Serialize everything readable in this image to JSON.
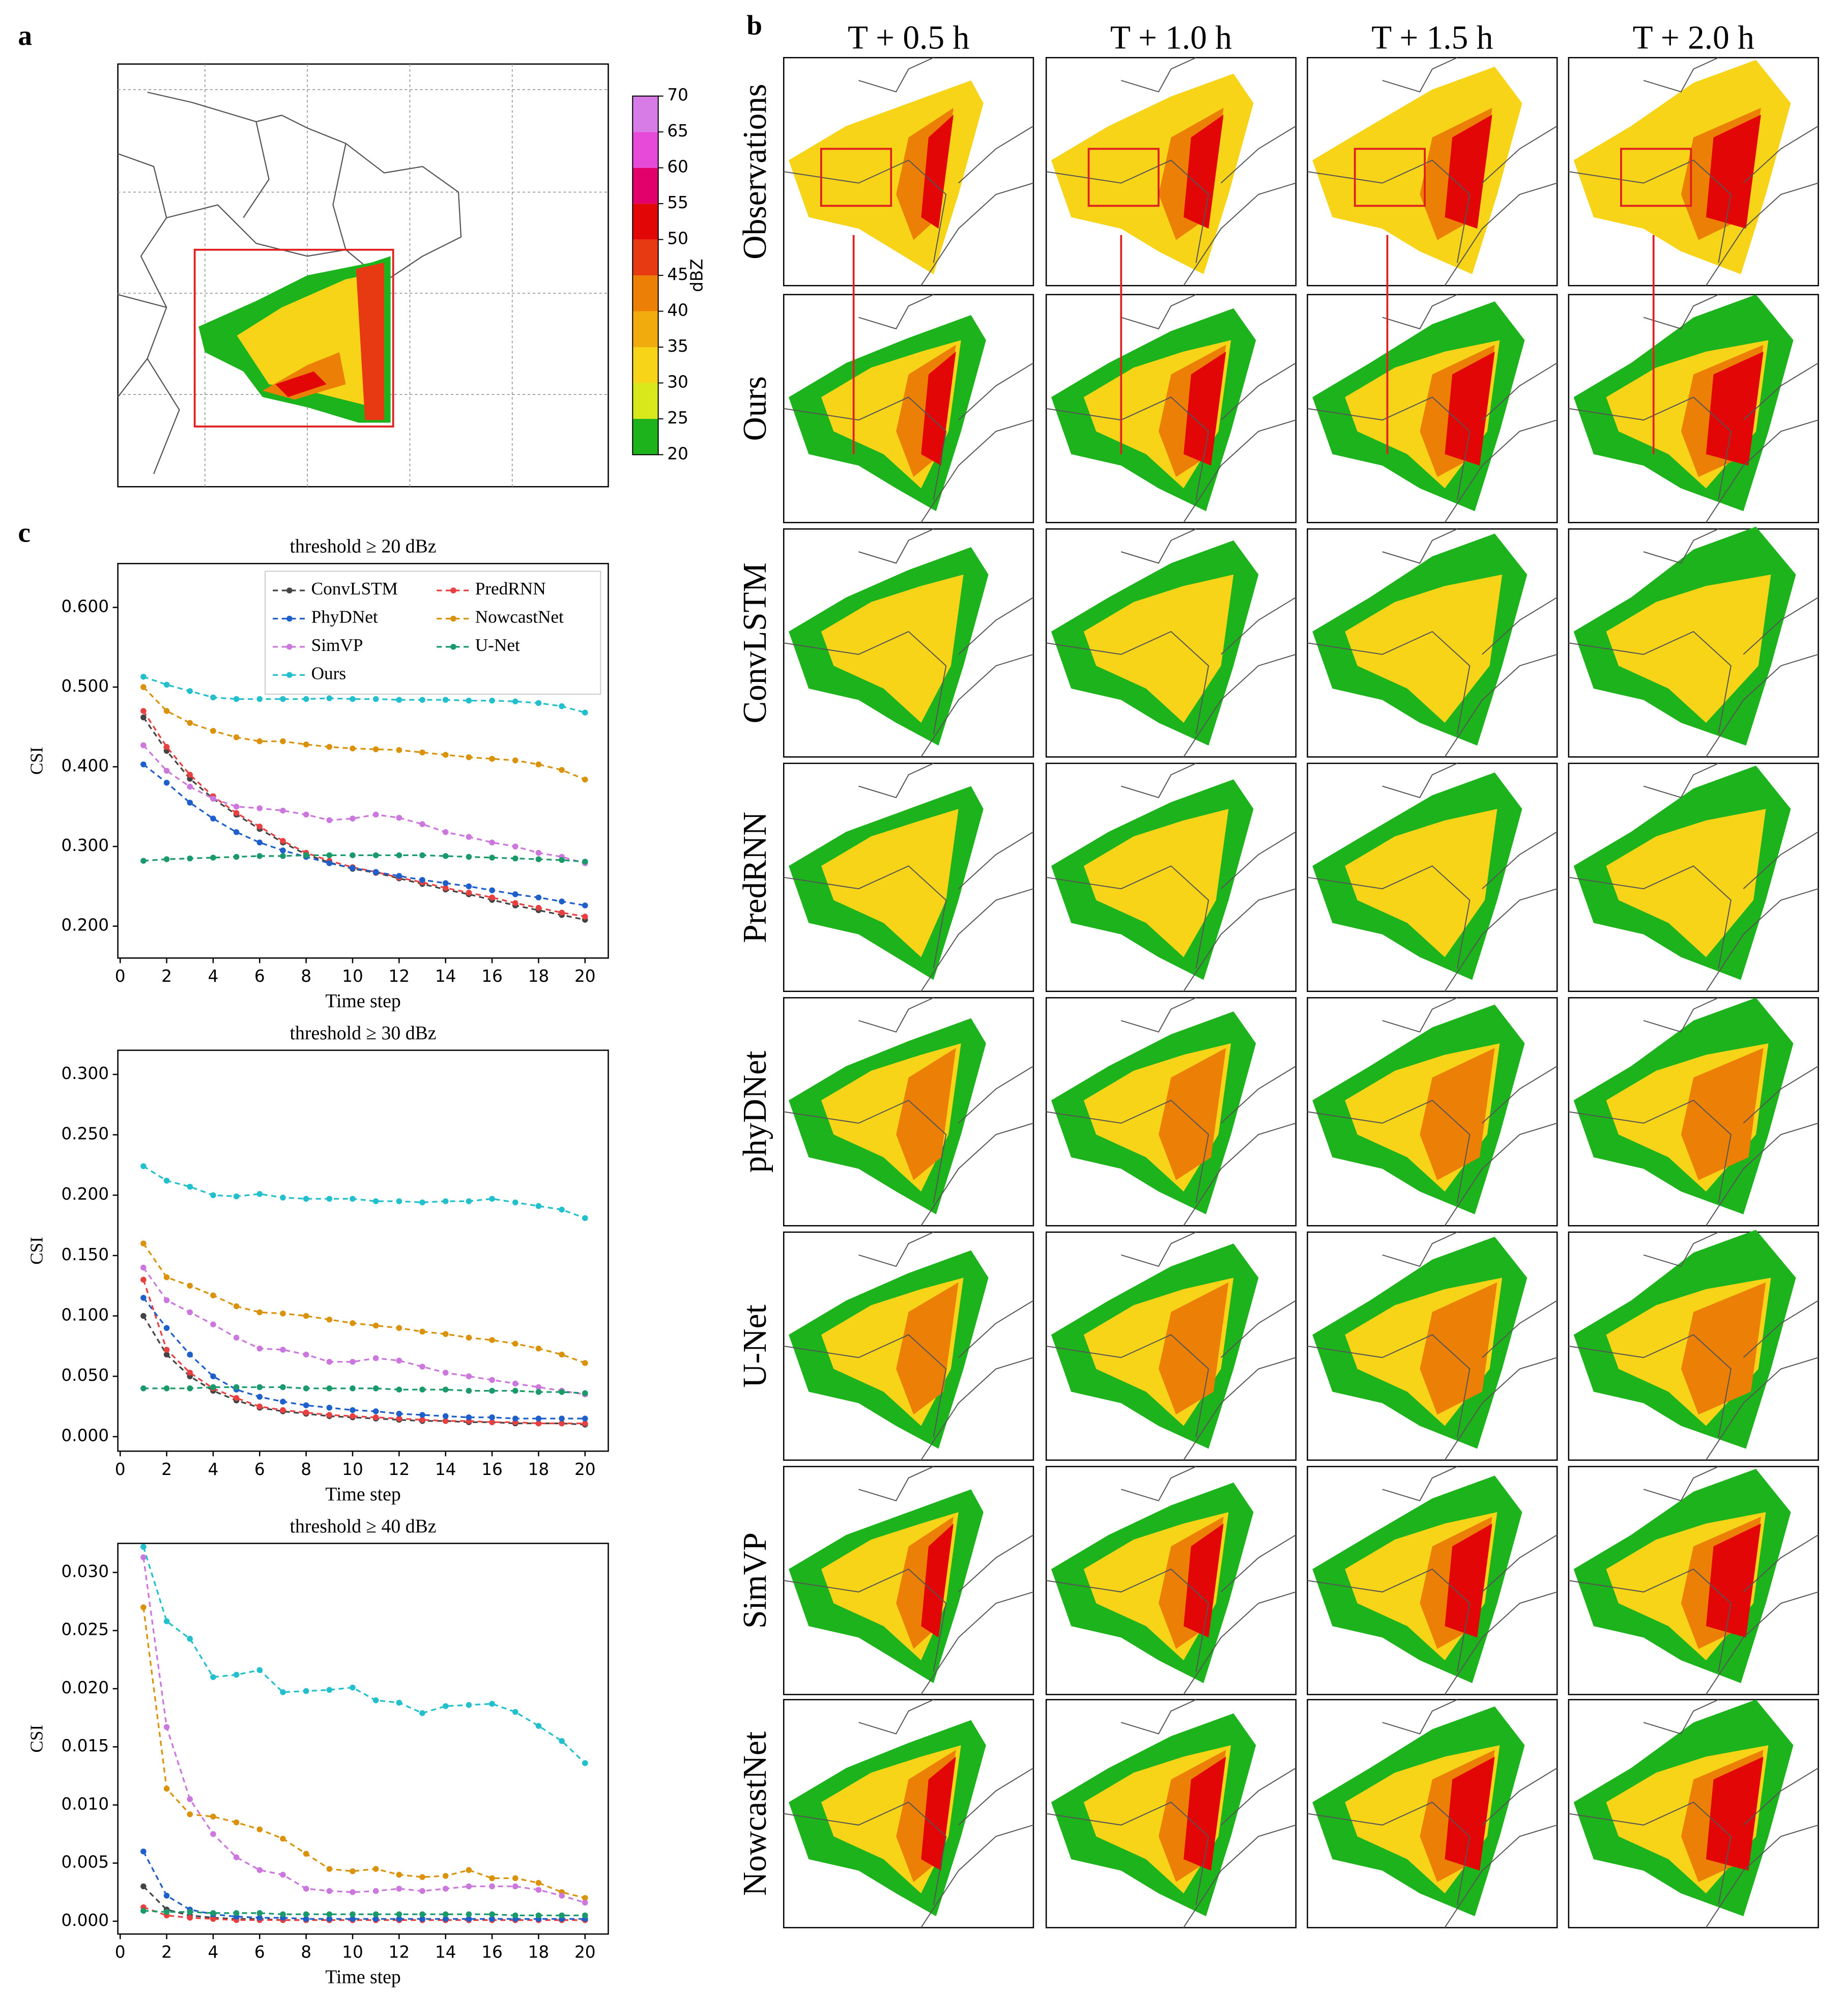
{
  "panel_labels": [
    "a",
    "b",
    "c"
  ],
  "colorbar": {
    "label": "dBZ",
    "ticks": [
      20,
      25,
      30,
      35,
      40,
      45,
      50,
      55,
      60,
      65,
      70
    ],
    "colors": [
      "#1db31d",
      "#d8e81a",
      "#f7d417",
      "#f2ab0c",
      "#ec7f06",
      "#e83a12",
      "#e20606",
      "#e2006a",
      "#e64ad8",
      "#d77be6",
      "#9b45c8"
    ]
  },
  "columns": [
    "T + 0.5 h",
    "T + 1.0 h",
    "T + 1.5 h",
    "T + 2.0 h"
  ],
  "rows": [
    "Observations",
    "Ours",
    "ConvLSTM",
    "PredRNN",
    "phyDNet",
    "U-Net",
    "SimVP",
    "NowcastNet"
  ],
  "chart_data": [
    {
      "type": "line",
      "title": "threshold ≥ 20 dBz",
      "x_label": "Time step",
      "y_label": "CSI",
      "x": [
        1,
        2,
        3,
        4,
        5,
        6,
        7,
        8,
        9,
        10,
        11,
        12,
        13,
        14,
        15,
        16,
        17,
        18,
        19,
        20
      ],
      "xlim": [
        -0.1,
        21
      ],
      "xticks": [
        0,
        2,
        4,
        6,
        8,
        10,
        12,
        14,
        16,
        18,
        20
      ],
      "ylim": [
        0.16,
        0.655
      ],
      "yticks": [
        {
          "value": 0.2,
          "label": "0.200"
        },
        {
          "value": 0.3,
          "label": "0.300"
        },
        {
          "value": 0.4,
          "label": "0.400"
        },
        {
          "value": 0.5,
          "label": "0.500"
        },
        {
          "value": 0.6,
          "label": "0.600"
        }
      ],
      "legend": "upper right",
      "series": [
        {
          "name": "ConvLSTM",
          "color": "#444444",
          "values": [
            0.462,
            0.42,
            0.385,
            0.36,
            0.34,
            0.322,
            0.305,
            0.29,
            0.28,
            0.272,
            0.267,
            0.26,
            0.253,
            0.246,
            0.24,
            0.233,
            0.226,
            0.22,
            0.214,
            0.208
          ]
        },
        {
          "name": "PredRNN",
          "color": "#e84040",
          "values": [
            0.47,
            0.425,
            0.39,
            0.363,
            0.342,
            0.325,
            0.307,
            0.292,
            0.282,
            0.274,
            0.268,
            0.261,
            0.255,
            0.248,
            0.242,
            0.236,
            0.229,
            0.223,
            0.217,
            0.212
          ]
        },
        {
          "name": "PhyDNet",
          "color": "#1f5fcc",
          "values": [
            0.403,
            0.38,
            0.355,
            0.335,
            0.318,
            0.305,
            0.295,
            0.287,
            0.279,
            0.273,
            0.268,
            0.263,
            0.258,
            0.254,
            0.25,
            0.245,
            0.24,
            0.236,
            0.231,
            0.226
          ]
        },
        {
          "name": "NowcastNet",
          "color": "#d9920a",
          "values": [
            0.5,
            0.47,
            0.455,
            0.445,
            0.437,
            0.432,
            0.432,
            0.428,
            0.425,
            0.423,
            0.422,
            0.421,
            0.418,
            0.415,
            0.412,
            0.41,
            0.408,
            0.403,
            0.396,
            0.384
          ]
        },
        {
          "name": "SimVP",
          "color": "#cc77dd",
          "values": [
            0.427,
            0.395,
            0.375,
            0.36,
            0.35,
            0.348,
            0.345,
            0.34,
            0.333,
            0.335,
            0.34,
            0.336,
            0.328,
            0.318,
            0.312,
            0.305,
            0.3,
            0.292,
            0.287,
            0.279
          ]
        },
        {
          "name": "U-Net",
          "color": "#1a9a6a",
          "values": [
            0.282,
            0.284,
            0.285,
            0.286,
            0.287,
            0.288,
            0.288,
            0.289,
            0.289,
            0.289,
            0.289,
            0.289,
            0.289,
            0.288,
            0.287,
            0.286,
            0.285,
            0.284,
            0.283,
            0.281
          ]
        },
        {
          "name": "Ours",
          "color": "#22c0cc",
          "values": [
            0.513,
            0.503,
            0.495,
            0.487,
            0.485,
            0.485,
            0.485,
            0.485,
            0.486,
            0.485,
            0.485,
            0.484,
            0.484,
            0.484,
            0.483,
            0.483,
            0.482,
            0.48,
            0.476,
            0.468
          ]
        }
      ]
    },
    {
      "type": "line",
      "title": "threshold ≥ 30 dBz",
      "x_label": "Time step",
      "y_label": "CSI",
      "x": [
        1,
        2,
        3,
        4,
        5,
        6,
        7,
        8,
        9,
        10,
        11,
        12,
        13,
        14,
        15,
        16,
        17,
        18,
        19,
        20
      ],
      "xlim": [
        -0.1,
        21
      ],
      "xticks": [
        0,
        2,
        4,
        6,
        8,
        10,
        12,
        14,
        16,
        18,
        20
      ],
      "ylim": [
        -0.012,
        0.32
      ],
      "yticks": [
        {
          "value": 0,
          "label": "0.000"
        },
        {
          "value": 0.05,
          "label": "0.050"
        },
        {
          "value": 0.1,
          "label": "0.100"
        },
        {
          "value": 0.15,
          "label": "0.150"
        },
        {
          "value": 0.2,
          "label": "0.200"
        },
        {
          "value": 0.25,
          "label": "0.250"
        },
        {
          "value": 0.3,
          "label": "0.300"
        }
      ],
      "series": [
        {
          "color": "#444444",
          "values": [
            0.1,
            0.068,
            0.05,
            0.038,
            0.03,
            0.024,
            0.021,
            0.019,
            0.017,
            0.016,
            0.015,
            0.014,
            0.013,
            0.013,
            0.012,
            0.012,
            0.011,
            0.011,
            0.011,
            0.01
          ]
        },
        {
          "color": "#e84040",
          "values": [
            0.13,
            0.072,
            0.053,
            0.04,
            0.032,
            0.025,
            0.022,
            0.02,
            0.018,
            0.017,
            0.016,
            0.015,
            0.014,
            0.013,
            0.013,
            0.012,
            0.012,
            0.011,
            0.011,
            0.011
          ]
        },
        {
          "color": "#1f5fcc",
          "values": [
            0.115,
            0.09,
            0.068,
            0.05,
            0.039,
            0.033,
            0.029,
            0.026,
            0.024,
            0.022,
            0.021,
            0.019,
            0.018,
            0.017,
            0.016,
            0.016,
            0.015,
            0.015,
            0.015,
            0.015
          ]
        },
        {
          "color": "#d9920a",
          "values": [
            0.16,
            0.132,
            0.125,
            0.117,
            0.108,
            0.103,
            0.102,
            0.1,
            0.097,
            0.094,
            0.092,
            0.09,
            0.087,
            0.085,
            0.082,
            0.08,
            0.077,
            0.073,
            0.068,
            0.061
          ]
        },
        {
          "color": "#cc77dd",
          "values": [
            0.14,
            0.113,
            0.103,
            0.093,
            0.082,
            0.073,
            0.072,
            0.068,
            0.062,
            0.062,
            0.065,
            0.063,
            0.058,
            0.053,
            0.05,
            0.047,
            0.044,
            0.041,
            0.038,
            0.035
          ]
        },
        {
          "color": "#1a9a6a",
          "values": [
            0.04,
            0.04,
            0.04,
            0.041,
            0.041,
            0.041,
            0.041,
            0.04,
            0.04,
            0.04,
            0.04,
            0.039,
            0.039,
            0.039,
            0.038,
            0.038,
            0.038,
            0.037,
            0.037,
            0.036
          ]
        },
        {
          "color": "#22c0cc",
          "values": [
            0.224,
            0.212,
            0.207,
            0.2,
            0.199,
            0.201,
            0.198,
            0.197,
            0.197,
            0.197,
            0.195,
            0.195,
            0.194,
            0.195,
            0.195,
            0.197,
            0.194,
            0.191,
            0.188,
            0.181
          ]
        }
      ]
    },
    {
      "type": "line",
      "title": "threshold ≥ 40 dBz",
      "x_label": "Time step",
      "y_label": "CSI",
      "x": [
        1,
        2,
        3,
        4,
        5,
        6,
        7,
        8,
        9,
        10,
        11,
        12,
        13,
        14,
        15,
        16,
        17,
        18,
        19,
        20
      ],
      "xlim": [
        -0.1,
        21
      ],
      "xticks": [
        0,
        2,
        4,
        6,
        8,
        10,
        12,
        14,
        16,
        18,
        20
      ],
      "ylim": [
        -0.0011,
        0.0325
      ],
      "yticks": [
        {
          "value": 0,
          "label": "0.000"
        },
        {
          "value": 0.005,
          "label": "0.005"
        },
        {
          "value": 0.01,
          "label": "0.010"
        },
        {
          "value": 0.015,
          "label": "0.015"
        },
        {
          "value": 0.02,
          "label": "0.020"
        },
        {
          "value": 0.025,
          "label": "0.025"
        },
        {
          "value": 0.03,
          "label": "0.030"
        }
      ],
      "series": [
        {
          "color": "#444444",
          "values": [
            0.003,
            0.001,
            0.0005,
            0.0003,
            0.0002,
            0.0002,
            0.0001,
            0.0001,
            0.0001,
            0.0001,
            0.0001,
            0.0001,
            0.0001,
            0.0001,
            0.0001,
            0.0001,
            0.0001,
            0.0001,
            0.0001,
            0.0001
          ]
        },
        {
          "color": "#e84040",
          "values": [
            0.0012,
            0.0005,
            0.0003,
            0.0002,
            0.0001,
            0.0001,
            0.0001,
            0.0001,
            0.0001,
            0.0001,
            0.0001,
            0.0001,
            0.0001,
            0.0001,
            0.0001,
            0.0001,
            0.0001,
            0.0001,
            0.0001,
            0.0001
          ]
        },
        {
          "color": "#1f5fcc",
          "values": [
            0.006,
            0.0022,
            0.001,
            0.0006,
            0.0004,
            0.0003,
            0.0003,
            0.0002,
            0.0002,
            0.0002,
            0.0002,
            0.0002,
            0.0002,
            0.0002,
            0.0002,
            0.0002,
            0.0002,
            0.0002,
            0.0002,
            0.0002
          ]
        },
        {
          "color": "#d9920a",
          "values": [
            0.027,
            0.0114,
            0.0092,
            0.009,
            0.0085,
            0.0079,
            0.0071,
            0.0058,
            0.0045,
            0.0043,
            0.0045,
            0.004,
            0.0038,
            0.0039,
            0.0044,
            0.0037,
            0.0037,
            0.0033,
            0.0025,
            0.002
          ]
        },
        {
          "color": "#cc77dd",
          "values": [
            0.0313,
            0.0167,
            0.0105,
            0.0075,
            0.0055,
            0.0044,
            0.004,
            0.0028,
            0.0026,
            0.0025,
            0.0026,
            0.0028,
            0.0026,
            0.0028,
            0.003,
            0.003,
            0.003,
            0.0027,
            0.0022,
            0.0016
          ]
        },
        {
          "color": "#1a9a6a",
          "values": [
            0.0009,
            0.0008,
            0.0008,
            0.0007,
            0.0007,
            0.0007,
            0.0006,
            0.0006,
            0.0006,
            0.0006,
            0.0006,
            0.0006,
            0.0006,
            0.0006,
            0.0006,
            0.0006,
            0.0005,
            0.0005,
            0.0005,
            0.0005
          ]
        },
        {
          "color": "#22c0cc",
          "values": [
            0.0322,
            0.0258,
            0.0243,
            0.021,
            0.0212,
            0.0216,
            0.0197,
            0.0198,
            0.0199,
            0.0201,
            0.019,
            0.0188,
            0.0179,
            0.0185,
            0.0186,
            0.0187,
            0.018,
            0.0168,
            0.0155,
            0.0136
          ]
        }
      ]
    }
  ]
}
